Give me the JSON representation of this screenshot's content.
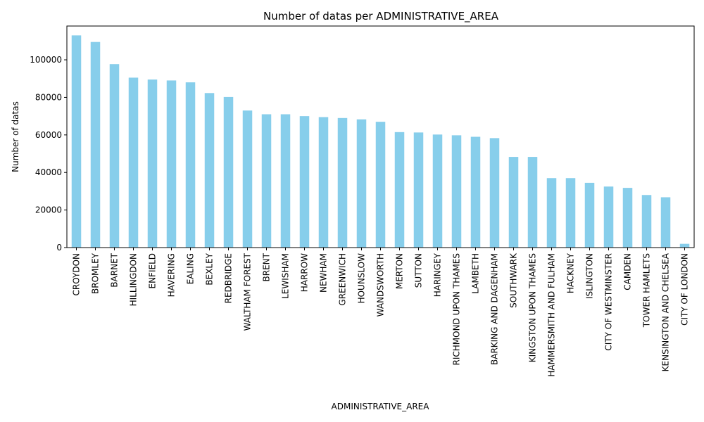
{
  "chart_data": {
    "type": "bar",
    "title": "Number of datas per ADMINISTRATIVE_AREA",
    "xlabel": "ADMINISTRATIVE_AREA",
    "ylabel": "Number of datas",
    "ylim": [
      0,
      118000
    ],
    "yticks": [
      0,
      20000,
      40000,
      60000,
      80000,
      100000
    ],
    "grid": false,
    "bar_color": "#87ceeb",
    "categories": [
      "CROYDON",
      "BROMLEY",
      "BARNET",
      "HILLINGDON",
      "ENFIELD",
      "HAVERING",
      "EALING",
      "BEXLEY",
      "REDBRIDGE",
      "WALTHAM FOREST",
      "BRENT",
      "LEWISHAM",
      "HARROW",
      "NEWHAM",
      "GREENWICH",
      "HOUNSLOW",
      "WANDSWORTH",
      "MERTON",
      "SUTTON",
      "HARINGEY",
      "RICHMOND UPON THAMES",
      "LAMBETH",
      "BARKING AND DAGENHAM",
      "SOUTHWARK",
      "KINGSTON UPON THAMES",
      "HAMMERSMITH AND FULHAM",
      "HACKNEY",
      "ISLINGTON",
      "CITY OF WESTMINSTER",
      "CAMDEN",
      "TOWER HAMLETS",
      "KENSINGTON AND CHELSEA",
      "CITY OF LONDON"
    ],
    "values": [
      113000,
      109500,
      97700,
      90500,
      89500,
      89000,
      88000,
      82300,
      80200,
      73000,
      71000,
      71000,
      70000,
      69500,
      69000,
      68300,
      67000,
      61500,
      61300,
      60200,
      59800,
      59000,
      58300,
      48300,
      48300,
      37000,
      37000,
      34500,
      32500,
      31800,
      28000,
      26800,
      2000
    ]
  }
}
